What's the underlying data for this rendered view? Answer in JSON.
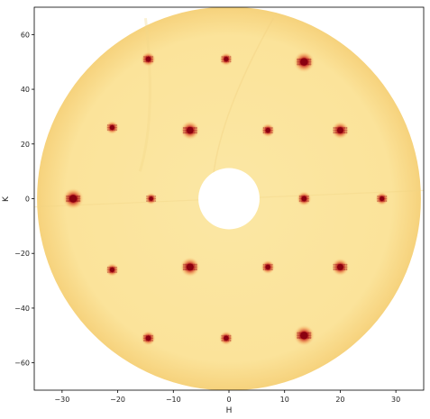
{
  "chart_data": {
    "type": "heatmap",
    "title": "",
    "xlabel": "H",
    "ylabel": "K",
    "xlim": [
      -35,
      35
    ],
    "ylim": [
      -70,
      70
    ],
    "x_ticks": [
      -30,
      -20,
      -10,
      0,
      10,
      20,
      30
    ],
    "x_tick_labels": [
      "−30",
      "−20",
      "−10",
      "0",
      "10",
      "20",
      "30"
    ],
    "y_ticks": [
      60,
      40,
      20,
      0,
      -20,
      -40,
      -60
    ],
    "y_tick_labels": [
      "60",
      "40",
      "20",
      "0",
      "−20",
      "−40",
      "−60"
    ],
    "grid": false,
    "detector_radius": 34.5,
    "beamstop_radius": 5.5,
    "colors": {
      "background": "#fbe39a",
      "edge": "#f5d27a",
      "peak_core": "#8a0010",
      "peak_mid": "#d8342a",
      "peak_outer": "#f3a64c",
      "beamstop": "#ffffff"
    },
    "peaks": [
      {
        "h": -14.5,
        "k": 51,
        "intensity": 0.55
      },
      {
        "h": -0.5,
        "k": 51,
        "intensity": 0.45
      },
      {
        "h": 13.5,
        "k": 50,
        "intensity": 1.0
      },
      {
        "h": -21,
        "k": 26,
        "intensity": 0.45
      },
      {
        "h": -7,
        "k": 25,
        "intensity": 0.85
      },
      {
        "h": 7,
        "k": 25,
        "intensity": 0.5
      },
      {
        "h": 20,
        "k": 25,
        "intensity": 0.75
      },
      {
        "h": -28,
        "k": 0,
        "intensity": 1.0
      },
      {
        "h": -14,
        "k": 0,
        "intensity": 0.35
      },
      {
        "h": 13.5,
        "k": 0,
        "intensity": 0.55
      },
      {
        "h": 27.5,
        "k": 0,
        "intensity": 0.45
      },
      {
        "h": -21,
        "k": -26,
        "intensity": 0.45
      },
      {
        "h": -7,
        "k": -25,
        "intensity": 0.9
      },
      {
        "h": 7,
        "k": -25,
        "intensity": 0.5
      },
      {
        "h": 20,
        "k": -25,
        "intensity": 0.75
      },
      {
        "h": -14.5,
        "k": -51,
        "intensity": 0.55
      },
      {
        "h": -0.5,
        "k": -51,
        "intensity": 0.5
      },
      {
        "h": 13.5,
        "k": -50,
        "intensity": 1.0
      }
    ]
  }
}
